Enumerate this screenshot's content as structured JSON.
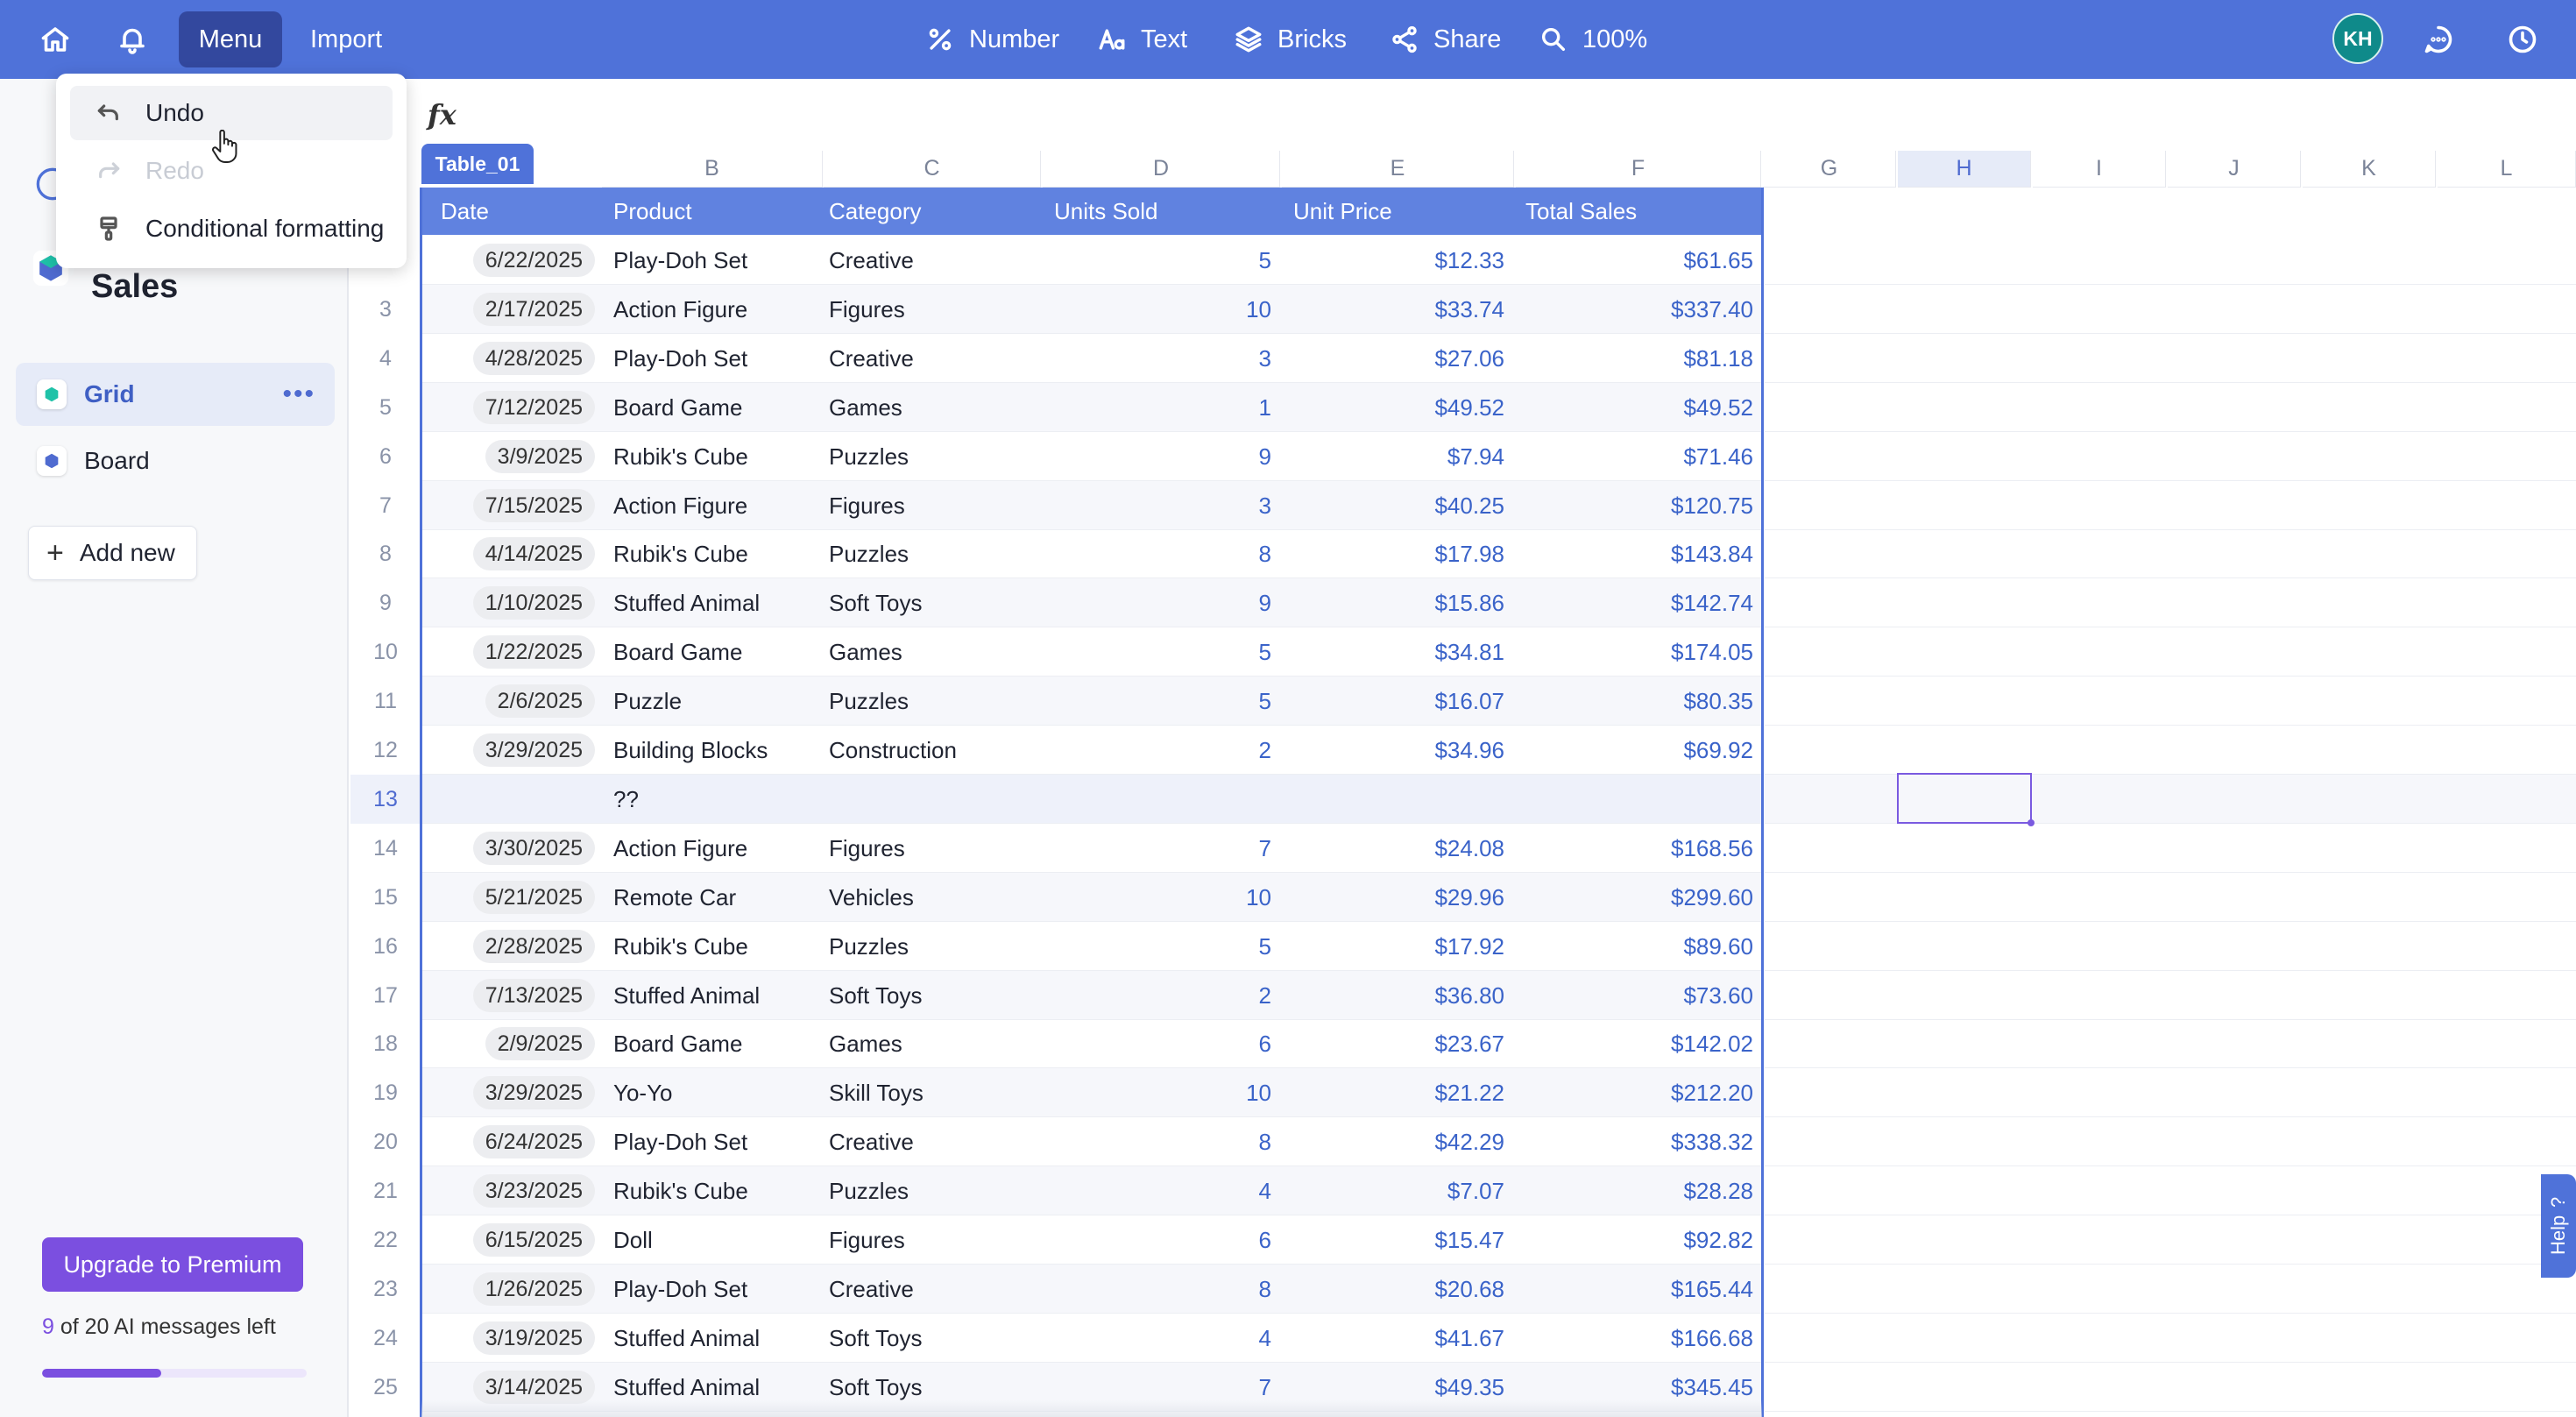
{
  "topbar": {
    "menu_label": "Menu",
    "import_label": "Import",
    "tools": [
      {
        "icon": "percent-icon",
        "label": "Number"
      },
      {
        "icon": "text-format-icon",
        "label": "Text"
      },
      {
        "icon": "layers-icon",
        "label": "Bricks"
      },
      {
        "icon": "share-icon",
        "label": "Share"
      },
      {
        "icon": "zoom-icon",
        "label": "100%"
      }
    ],
    "avatar_initials": "KH",
    "accent_color": "#4f72d9"
  },
  "dropdown": {
    "items": [
      {
        "label": "Undo",
        "icon": "undo-icon",
        "enabled": true
      },
      {
        "label": "Redo",
        "icon": "redo-icon",
        "enabled": false
      },
      {
        "label": "Conditional formatting",
        "icon": "paint-brush-icon",
        "enabled": true
      }
    ]
  },
  "sidebar": {
    "title": "Sales",
    "items": [
      {
        "label": "Grid",
        "active": true,
        "color": "#1fc2a8"
      },
      {
        "label": "Board",
        "active": false,
        "color": "#4f6bd0"
      }
    ],
    "add_new_label": "Add new",
    "upgrade_label": "Upgrade to Premium",
    "ai_used": "9",
    "ai_rest": " of 20 AI messages left",
    "ai_progress": 0.45
  },
  "formula": {
    "fx": "fx"
  },
  "grid": {
    "table_name": "Table_01",
    "column_letters": [
      "B",
      "C",
      "D",
      "E",
      "F",
      "G",
      "H",
      "I",
      "J",
      "K",
      "L"
    ],
    "selected_column": "H",
    "headers": [
      "Date",
      "Product",
      "Category",
      "Units Sold",
      "Unit Price",
      "Total Sales"
    ],
    "rows": [
      {
        "n": "",
        "date": "6/22/2025",
        "product": "Play-Doh Set",
        "category": "Creative",
        "units": "5",
        "price": "$12.33",
        "total": "$61.65"
      },
      {
        "n": "3",
        "date": "2/17/2025",
        "product": "Action Figure",
        "category": "Figures",
        "units": "10",
        "price": "$33.74",
        "total": "$337.40"
      },
      {
        "n": "4",
        "date": "4/28/2025",
        "product": "Play-Doh Set",
        "category": "Creative",
        "units": "3",
        "price": "$27.06",
        "total": "$81.18"
      },
      {
        "n": "5",
        "date": "7/12/2025",
        "product": "Board Game",
        "category": "Games",
        "units": "1",
        "price": "$49.52",
        "total": "$49.52"
      },
      {
        "n": "6",
        "date": "3/9/2025",
        "product": "Rubik's Cube",
        "category": "Puzzles",
        "units": "9",
        "price": "$7.94",
        "total": "$71.46"
      },
      {
        "n": "7",
        "date": "7/15/2025",
        "product": "Action Figure",
        "category": "Figures",
        "units": "3",
        "price": "$40.25",
        "total": "$120.75"
      },
      {
        "n": "8",
        "date": "4/14/2025",
        "product": "Rubik's Cube",
        "category": "Puzzles",
        "units": "8",
        "price": "$17.98",
        "total": "$143.84"
      },
      {
        "n": "9",
        "date": "1/10/2025",
        "product": "Stuffed Animal",
        "category": "Soft Toys",
        "units": "9",
        "price": "$15.86",
        "total": "$142.74"
      },
      {
        "n": "10",
        "date": "1/22/2025",
        "product": "Board Game",
        "category": "Games",
        "units": "5",
        "price": "$34.81",
        "total": "$174.05"
      },
      {
        "n": "11",
        "date": "2/6/2025",
        "product": "Puzzle",
        "category": "Puzzles",
        "units": "5",
        "price": "$16.07",
        "total": "$80.35"
      },
      {
        "n": "12",
        "date": "3/29/2025",
        "product": "Building Blocks",
        "category": "Construction",
        "units": "2",
        "price": "$34.96",
        "total": "$69.92"
      },
      {
        "n": "13",
        "date": "",
        "product": "??",
        "category": "",
        "units": "",
        "price": "",
        "total": ""
      },
      {
        "n": "14",
        "date": "3/30/2025",
        "product": "Action Figure",
        "category": "Figures",
        "units": "7",
        "price": "$24.08",
        "total": "$168.56"
      },
      {
        "n": "15",
        "date": "5/21/2025",
        "product": "Remote Car",
        "category": "Vehicles",
        "units": "10",
        "price": "$29.96",
        "total": "$299.60"
      },
      {
        "n": "16",
        "date": "2/28/2025",
        "product": "Rubik's Cube",
        "category": "Puzzles",
        "units": "5",
        "price": "$17.92",
        "total": "$89.60"
      },
      {
        "n": "17",
        "date": "7/13/2025",
        "product": "Stuffed Animal",
        "category": "Soft Toys",
        "units": "2",
        "price": "$36.80",
        "total": "$73.60"
      },
      {
        "n": "18",
        "date": "2/9/2025",
        "product": "Board Game",
        "category": "Games",
        "units": "6",
        "price": "$23.67",
        "total": "$142.02"
      },
      {
        "n": "19",
        "date": "3/29/2025",
        "product": "Yo-Yo",
        "category": "Skill Toys",
        "units": "10",
        "price": "$21.22",
        "total": "$212.20"
      },
      {
        "n": "20",
        "date": "6/24/2025",
        "product": "Play-Doh Set",
        "category": "Creative",
        "units": "8",
        "price": "$42.29",
        "total": "$338.32"
      },
      {
        "n": "21",
        "date": "3/23/2025",
        "product": "Rubik's Cube",
        "category": "Puzzles",
        "units": "4",
        "price": "$7.07",
        "total": "$28.28"
      },
      {
        "n": "22",
        "date": "6/15/2025",
        "product": "Doll",
        "category": "Figures",
        "units": "6",
        "price": "$15.47",
        "total": "$92.82"
      },
      {
        "n": "23",
        "date": "1/26/2025",
        "product": "Play-Doh Set",
        "category": "Creative",
        "units": "8",
        "price": "$20.68",
        "total": "$165.44"
      },
      {
        "n": "24",
        "date": "3/19/2025",
        "product": "Stuffed Animal",
        "category": "Soft Toys",
        "units": "4",
        "price": "$41.67",
        "total": "$166.68"
      },
      {
        "n": "25",
        "date": "3/14/2025",
        "product": "Stuffed Animal",
        "category": "Soft Toys",
        "units": "7",
        "price": "$49.35",
        "total": "$345.45"
      }
    ],
    "selected_row": "13"
  },
  "help": {
    "label": "Help"
  }
}
